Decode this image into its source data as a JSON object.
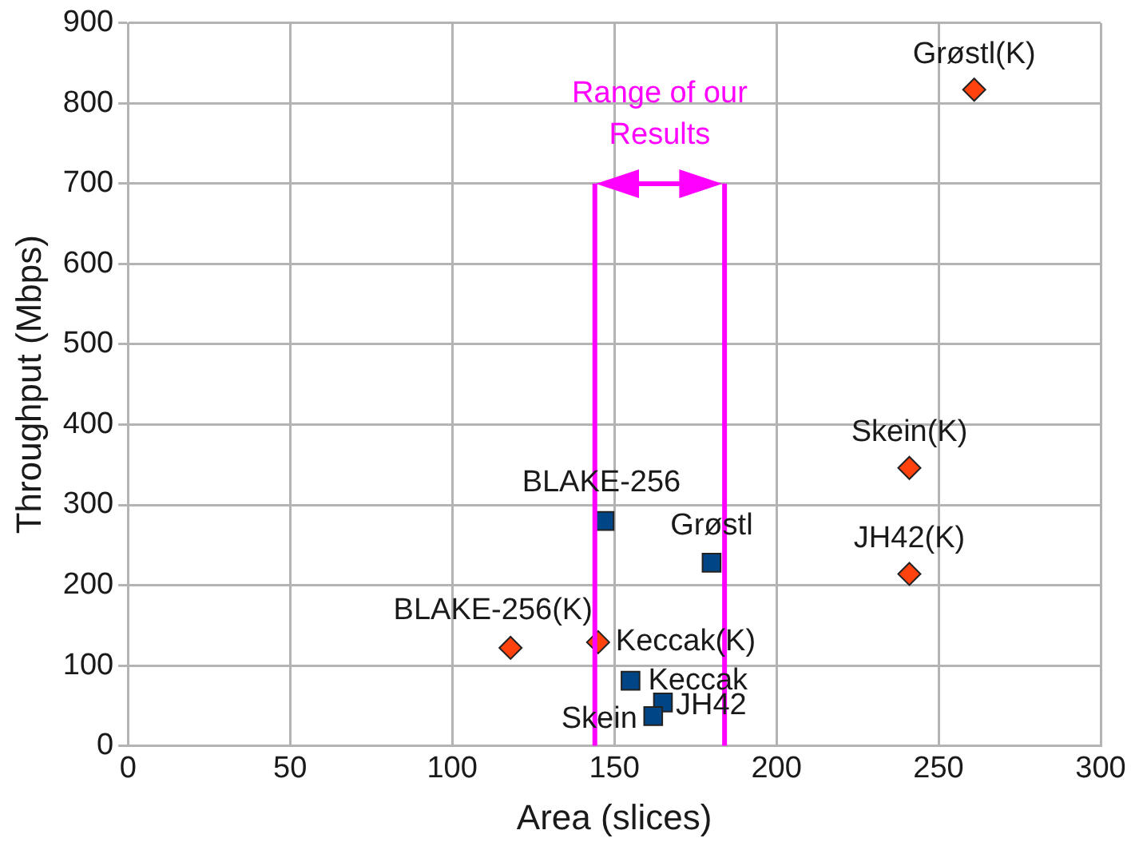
{
  "chart_data": {
    "type": "scatter",
    "xlabel": "Area (slices)",
    "ylabel": "Throughput (Mbps)",
    "xlim": [
      0,
      300
    ],
    "xticks": [
      0,
      50,
      100,
      150,
      200,
      250,
      300
    ],
    "ylim": [
      0,
      900
    ],
    "yticks": [
      0,
      100,
      200,
      300,
      400,
      500,
      600,
      700,
      800,
      900
    ],
    "grid": true,
    "legend": false,
    "series": [
      {
        "color": "#004586",
        "marker": "square",
        "x": [
          147,
          180,
          155,
          165,
          162
        ],
        "values": [
          280,
          228,
          81,
          54,
          37
        ]
      },
      {
        "color": "#ff420e",
        "marker": "diamond",
        "x": [
          261,
          241,
          241,
          118,
          145
        ],
        "values": [
          817,
          346,
          214,
          122,
          129
        ]
      }
    ],
    "ref_lines": [
      {
        "axis": "x",
        "value": 144,
        "color": "#ff00ff"
      },
      {
        "axis": "x",
        "value": 184,
        "color": "#ff00ff"
      }
    ],
    "annotations": [
      {
        "text": "Grøstl(K)",
        "x": 261,
        "y": 817
      },
      {
        "text": "Skein(K)",
        "x": 241,
        "y": 346
      },
      {
        "text": "JH42(K)",
        "x": 241,
        "y": 214
      },
      {
        "text": "BLAKE-256(K)",
        "x": 118,
        "y": 122
      },
      {
        "text": "Keccak(K)",
        "x": 145,
        "y": 129
      },
      {
        "text": "BLAKE-256",
        "x": 147,
        "y": 280
      },
      {
        "text": "Grøstl",
        "x": 180,
        "y": 228
      },
      {
        "text": "Keccak",
        "x": 155,
        "y": 81
      },
      {
        "text": "JH42",
        "x": 165,
        "y": 54
      },
      {
        "text": "Skein",
        "x": 162,
        "y": 37
      },
      "Range of our Results"
    ]
  }
}
